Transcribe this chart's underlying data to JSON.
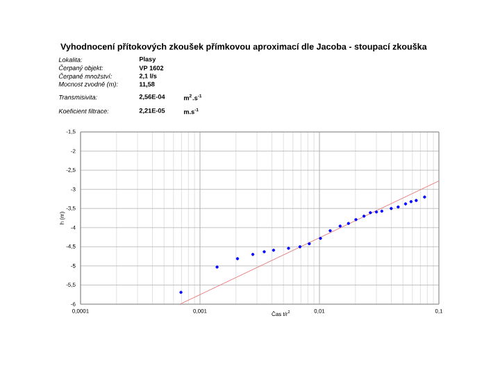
{
  "chart_data": {
    "type": "scatter",
    "title": "Vyhodnocení přítokových zkoušek přímkovou aproximací dle Jacoba - stoupací zkouška",
    "annotations": [
      "Lokalita:",
      "Plasy",
      "Čerpaný objekt:",
      "VP 1602",
      "Čerpané množství:",
      "2,1 l/s",
      "Mocnost zvodně (m):",
      "11,58",
      "Transmisivita:",
      "2,56E-04",
      "m$^{2}$.s$^{-1}$",
      "Koeficient filtrace:",
      "2,21E-05",
      "m.s$^{-1}$"
    ],
    "xlabel": "Čas t/r$^{2}$",
    "ylabel": "h (m)",
    "log": "x",
    "grid": true,
    "marker": "circle",
    "xlim": [
      0.0001,
      0.1
    ],
    "ylim": [
      -6,
      -1.5
    ],
    "xticks": [
      {
        "value": 0.0001,
        "label": "0,0001"
      },
      {
        "value": 0.001,
        "label": "0,001"
      },
      {
        "value": 0.01,
        "label": "0,01"
      },
      {
        "value": 0.1,
        "label": "0,1"
      }
    ],
    "yticks": [
      {
        "value": -6,
        "label": "-6"
      },
      {
        "value": -5.5,
        "label": "-5,5"
      },
      {
        "value": -5,
        "label": "-5"
      },
      {
        "value": -4.5,
        "label": "-4,5"
      },
      {
        "value": -4,
        "label": "-4"
      },
      {
        "value": -3.5,
        "label": "-3,5"
      },
      {
        "value": -3,
        "label": "-3"
      },
      {
        "value": -2.5,
        "label": "-2,5"
      },
      {
        "value": -2,
        "label": "-2"
      },
      {
        "value": -1.5,
        "label": "-1,5"
      }
    ],
    "series": [
      {
        "color": "#0000ff",
        "x": [
          0.000693,
          0.00139,
          0.00206,
          0.00277,
          0.00345,
          0.00413,
          0.00551,
          0.00687,
          0.00822,
          0.0102,
          0.0123,
          0.0149,
          0.0175,
          0.0202,
          0.0236,
          0.0267,
          0.03,
          0.0333,
          0.0399,
          0.0456,
          0.0526,
          0.0585,
          0.0646,
          0.0759
        ],
        "values": [
          -5.69,
          -5.03,
          -4.81,
          -4.7,
          -4.63,
          -4.59,
          -4.54,
          -4.5,
          -4.42,
          -4.28,
          -4.08,
          -3.96,
          -3.89,
          -3.79,
          -3.7,
          -3.61,
          -3.59,
          -3.57,
          -3.5,
          -3.46,
          -3.38,
          -3.32,
          -3.29,
          -3.2
        ]
      },
      {
        "type": "line",
        "color": "#e87c7c",
        "marker": "none",
        "line_style": "solid",
        "x": [
          0.00068,
          0.1
        ],
        "values": [
          -6,
          -2.78
        ]
      }
    ]
  }
}
